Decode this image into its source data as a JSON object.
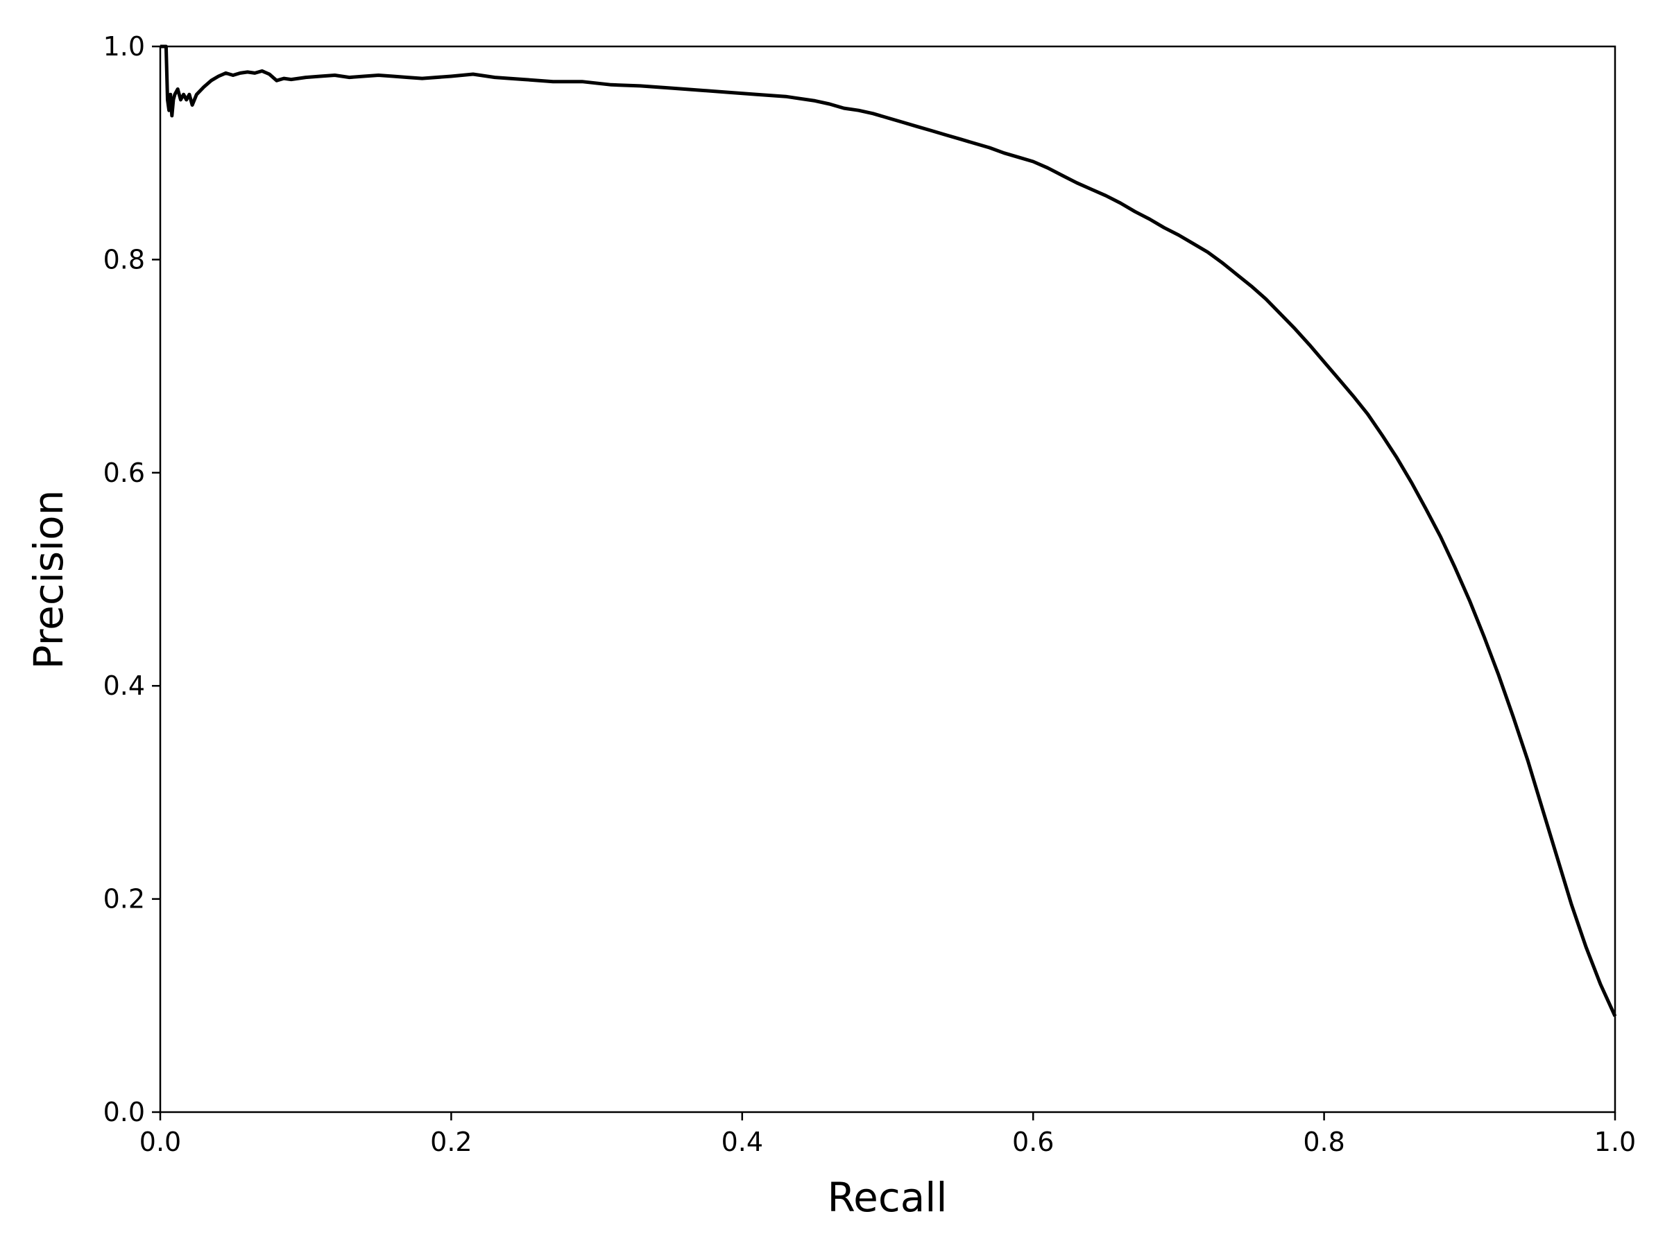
{
  "chart_data": {
    "type": "line",
    "title": "",
    "xlabel": "Recall",
    "ylabel": "Precision",
    "xlim": [
      0.0,
      1.0
    ],
    "ylim": [
      0.0,
      1.0
    ],
    "x_ticks": [
      "0.0",
      "0.2",
      "0.4",
      "0.6",
      "0.8",
      "1.0"
    ],
    "y_ticks": [
      "0.0",
      "0.2",
      "0.4",
      "0.6",
      "0.8",
      "1.0"
    ],
    "grid": false,
    "legend": "none",
    "series": [
      {
        "color": "#000000",
        "x": [
          0.0,
          0.004,
          0.005,
          0.006,
          0.007,
          0.008,
          0.009,
          0.01,
          0.012,
          0.014,
          0.016,
          0.018,
          0.02,
          0.022,
          0.025,
          0.03,
          0.035,
          0.04,
          0.045,
          0.05,
          0.055,
          0.06,
          0.065,
          0.07,
          0.075,
          0.08,
          0.085,
          0.09,
          0.1,
          0.11,
          0.12,
          0.13,
          0.14,
          0.15,
          0.16,
          0.17,
          0.18,
          0.2,
          0.215,
          0.23,
          0.25,
          0.27,
          0.29,
          0.31,
          0.33,
          0.35,
          0.37,
          0.39,
          0.41,
          0.43,
          0.45,
          0.46,
          0.47,
          0.48,
          0.49,
          0.5,
          0.51,
          0.52,
          0.53,
          0.54,
          0.55,
          0.56,
          0.57,
          0.58,
          0.59,
          0.6,
          0.61,
          0.62,
          0.63,
          0.64,
          0.65,
          0.66,
          0.67,
          0.68,
          0.69,
          0.7,
          0.71,
          0.72,
          0.73,
          0.74,
          0.75,
          0.76,
          0.77,
          0.78,
          0.79,
          0.8,
          0.81,
          0.82,
          0.83,
          0.84,
          0.85,
          0.86,
          0.87,
          0.88,
          0.89,
          0.9,
          0.91,
          0.92,
          0.93,
          0.94,
          0.95,
          0.96,
          0.97,
          0.98,
          0.99,
          1.0
        ],
        "y": [
          1.0,
          1.0,
          0.95,
          0.94,
          0.955,
          0.935,
          0.95,
          0.955,
          0.96,
          0.95,
          0.955,
          0.95,
          0.955,
          0.945,
          0.955,
          0.962,
          0.968,
          0.972,
          0.975,
          0.973,
          0.975,
          0.976,
          0.975,
          0.977,
          0.974,
          0.968,
          0.97,
          0.969,
          0.971,
          0.972,
          0.973,
          0.971,
          0.972,
          0.973,
          0.972,
          0.971,
          0.97,
          0.972,
          0.974,
          0.971,
          0.969,
          0.967,
          0.967,
          0.964,
          0.963,
          0.961,
          0.959,
          0.957,
          0.955,
          0.953,
          0.949,
          0.946,
          0.942,
          0.94,
          0.937,
          0.933,
          0.929,
          0.925,
          0.921,
          0.917,
          0.913,
          0.909,
          0.905,
          0.9,
          0.896,
          0.892,
          0.886,
          0.879,
          0.872,
          0.866,
          0.86,
          0.853,
          0.845,
          0.838,
          0.83,
          0.823,
          0.815,
          0.807,
          0.797,
          0.786,
          0.775,
          0.763,
          0.749,
          0.735,
          0.72,
          0.704,
          0.688,
          0.672,
          0.655,
          0.635,
          0.614,
          0.591,
          0.566,
          0.54,
          0.511,
          0.48,
          0.446,
          0.41,
          0.371,
          0.33,
          0.285,
          0.24,
          0.195,
          0.155,
          0.12,
          0.09
        ]
      }
    ]
  }
}
